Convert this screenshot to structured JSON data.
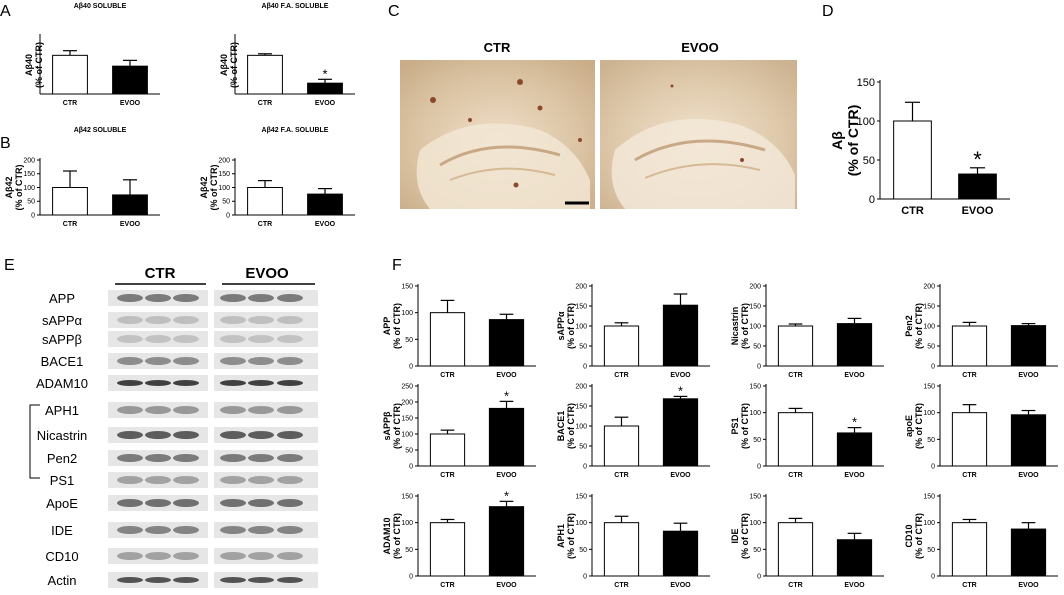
{
  "panels": {
    "A": "A",
    "B": "B",
    "C": "C",
    "D": "D",
    "E": "E",
    "F": "F"
  },
  "micrograph": {
    "left_label": "CTR",
    "right_label": "EVOO"
  },
  "western_blot": {
    "group_labels": [
      "CTR",
      "EVOO"
    ],
    "rows": [
      "APP",
      "sAPPα",
      "sAPPβ",
      "BACE1",
      "ADAM10",
      "APH1",
      "Nicastrin",
      "Pen2",
      "PS1",
      "ApoE",
      "IDE",
      "CD10",
      "Actin"
    ]
  },
  "colors": {
    "ctr_fill": "#ffffff",
    "evoo_fill": "#000000",
    "axis": "#000000"
  },
  "chart_data": [
    {
      "id": "A1",
      "type": "bar",
      "title": "Aβ40 SOLUBLE",
      "ylabel": "Aβ40\n(% of CTR)",
      "categories": [
        "CTR",
        "EVOO"
      ],
      "values": [
        100,
        72
      ],
      "errors": [
        12,
        15
      ],
      "sig": [
        false,
        false
      ],
      "ylim": [
        0,
        150
      ],
      "yticks": []
    },
    {
      "id": "A2",
      "type": "bar",
      "title": "Aβ40 F.A. SOLUBLE",
      "ylabel": "Aβ40\n(% of CTR)",
      "categories": [
        "CTR",
        "EVOO"
      ],
      "values": [
        100,
        28
      ],
      "errors": [
        4,
        10
      ],
      "sig": [
        false,
        true
      ],
      "ylim": [
        0,
        150
      ],
      "yticks": []
    },
    {
      "id": "B1",
      "type": "bar",
      "title": "Aβ42 SOLUBLE",
      "ylabel": "Aβ42\n(% of CTR)",
      "categories": [
        "CTR",
        "EVOO"
      ],
      "values": [
        100,
        73
      ],
      "errors": [
        60,
        55
      ],
      "sig": [
        false,
        false
      ],
      "ylim": [
        0,
        200
      ],
      "yticks": [
        "0",
        "50",
        "100",
        "150",
        "200"
      ]
    },
    {
      "id": "B2",
      "type": "bar",
      "title": "Aβ42 F.A. SOLUBLE",
      "ylabel": "Aβ42\n(% of CTR)",
      "categories": [
        "CTR",
        "EVOO"
      ],
      "values": [
        100,
        76
      ],
      "errors": [
        25,
        20
      ],
      "sig": [
        false,
        false
      ],
      "ylim": [
        0,
        200
      ],
      "yticks": [
        "0",
        "50",
        "100",
        "150",
        "200"
      ]
    },
    {
      "id": "D",
      "type": "bar",
      "title": "",
      "ylabel": "Aβ\n(% of CTR)",
      "categories": [
        "CTR",
        "EVOO"
      ],
      "values": [
        100,
        32
      ],
      "errors": [
        24,
        8
      ],
      "sig": [
        false,
        true
      ],
      "ylim": [
        0,
        150
      ],
      "yticks": [
        "0",
        "50",
        "100",
        "150"
      ]
    },
    {
      "id": "F-APP",
      "type": "bar",
      "title": "",
      "ylabel": "APP\n(% of CTR)",
      "categories": [
        "CTR",
        "EVOO"
      ],
      "values": [
        100,
        87
      ],
      "errors": [
        23,
        10
      ],
      "sig": [
        false,
        false
      ],
      "ylim": [
        0,
        150
      ],
      "yticks": [
        "0",
        "50",
        "100",
        "150"
      ]
    },
    {
      "id": "F-sAPPa",
      "type": "bar",
      "title": "",
      "ylabel": "sAPPα\n(% of CTR)",
      "categories": [
        "CTR",
        "EVOO"
      ],
      "values": [
        100,
        152
      ],
      "errors": [
        8,
        28
      ],
      "sig": [
        false,
        false
      ],
      "ylim": [
        0,
        200
      ],
      "yticks": [
        "0",
        "50",
        "100",
        "150",
        "200"
      ]
    },
    {
      "id": "F-Nicastrin",
      "type": "bar",
      "title": "",
      "ylabel": "Nicastrin\n(% of CTR)",
      "categories": [
        "CTR",
        "EVOO"
      ],
      "values": [
        100,
        106
      ],
      "errors": [
        5,
        13
      ],
      "sig": [
        false,
        false
      ],
      "ylim": [
        0,
        200
      ],
      "yticks": [
        "0",
        "50",
        "100",
        "150",
        "200"
      ]
    },
    {
      "id": "F-Pen2",
      "type": "bar",
      "title": "",
      "ylabel": "Pen2\n(% of CTR)",
      "categories": [
        "CTR",
        "EVOO"
      ],
      "values": [
        100,
        101
      ],
      "errors": [
        9,
        5
      ],
      "sig": [
        false,
        false
      ],
      "ylim": [
        0,
        200
      ],
      "yticks": [
        "0",
        "50",
        "100",
        "150",
        "200"
      ]
    },
    {
      "id": "F-sAPPb",
      "type": "bar",
      "title": "",
      "ylabel": "sAPPβ\n(% of CTR)",
      "categories": [
        "CTR",
        "EVOO"
      ],
      "values": [
        100,
        180
      ],
      "errors": [
        12,
        22
      ],
      "sig": [
        false,
        true
      ],
      "ylim": [
        0,
        250
      ],
      "yticks": [
        "0",
        "50",
        "100",
        "150",
        "200",
        "250"
      ]
    },
    {
      "id": "F-BACE1",
      "type": "bar",
      "title": "",
      "ylabel": "BACE1\n(% of CTR)",
      "categories": [
        "CTR",
        "EVOO"
      ],
      "values": [
        100,
        168
      ],
      "errors": [
        22,
        6
      ],
      "sig": [
        false,
        true
      ],
      "ylim": [
        0,
        200
      ],
      "yticks": [
        "0",
        "50",
        "100",
        "150",
        "200"
      ]
    },
    {
      "id": "F-PS1",
      "type": "bar",
      "title": "",
      "ylabel": "PS1\n(% of CTR)",
      "categories": [
        "CTR",
        "EVOO"
      ],
      "values": [
        100,
        62
      ],
      "errors": [
        8,
        10
      ],
      "sig": [
        false,
        true
      ],
      "ylim": [
        0,
        150
      ],
      "yticks": [
        "0",
        "50",
        "100",
        "150"
      ]
    },
    {
      "id": "F-apoE",
      "type": "bar",
      "title": "",
      "ylabel": "apoE\n(% of CTR)",
      "categories": [
        "CTR",
        "EVOO"
      ],
      "values": [
        100,
        96
      ],
      "errors": [
        15,
        8
      ],
      "sig": [
        false,
        false
      ],
      "ylim": [
        0,
        150
      ],
      "yticks": [
        "0",
        "50",
        "100",
        "150"
      ]
    },
    {
      "id": "F-ADAM10",
      "type": "bar",
      "title": "",
      "ylabel": "ADAM10\n(% of CTR)",
      "categories": [
        "CTR",
        "EVOO"
      ],
      "values": [
        100,
        130
      ],
      "errors": [
        6,
        10
      ],
      "sig": [
        false,
        true
      ],
      "ylim": [
        0,
        150
      ],
      "yticks": [
        "0",
        "50",
        "100",
        "150"
      ]
    },
    {
      "id": "F-APH1",
      "type": "bar",
      "title": "",
      "ylabel": "APH1\n(% of CTR)",
      "categories": [
        "CTR",
        "EVOO"
      ],
      "values": [
        100,
        84
      ],
      "errors": [
        12,
        15
      ],
      "sig": [
        false,
        false
      ],
      "ylim": [
        0,
        150
      ],
      "yticks": [
        "0",
        "50",
        "100",
        "150"
      ]
    },
    {
      "id": "F-IDE",
      "type": "bar",
      "title": "",
      "ylabel": "IDE\n(% of CTR)",
      "categories": [
        "CTR",
        "EVOO"
      ],
      "values": [
        100,
        68
      ],
      "errors": [
        8,
        12
      ],
      "sig": [
        false,
        false
      ],
      "ylim": [
        0,
        150
      ],
      "yticks": [
        "0",
        "50",
        "100",
        "150"
      ]
    },
    {
      "id": "F-CD10",
      "type": "bar",
      "title": "",
      "ylabel": "CD10\n(% of CTR)",
      "categories": [
        "CTR",
        "EVOO"
      ],
      "values": [
        100,
        88
      ],
      "errors": [
        6,
        12
      ],
      "sig": [
        false,
        false
      ],
      "ylim": [
        0,
        150
      ],
      "yticks": [
        "0",
        "50",
        "100",
        "150"
      ]
    }
  ]
}
